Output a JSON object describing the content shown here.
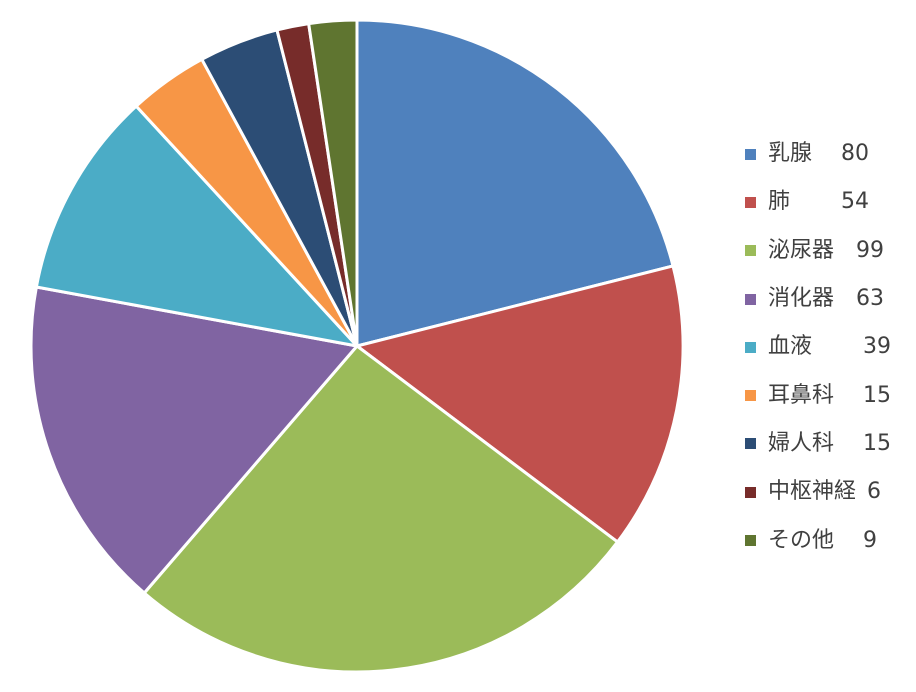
{
  "chart_data": {
    "type": "pie",
    "categories": [
      "乳腺",
      "肺",
      "泌尿器",
      "消化器",
      "血液",
      "耳鼻科",
      "婦人科",
      "中枢神経",
      "その他"
    ],
    "values": [
      80,
      54,
      99,
      63,
      39,
      15,
      15,
      6,
      9
    ],
    "legend_labels": [
      "乳腺　 80",
      "肺　　 54",
      "泌尿器　99",
      "消化器　63",
      "血液　　 39",
      "耳鼻科　 15",
      "婦人科　 15",
      "中枢神経 6",
      "その他　 9"
    ],
    "colors": [
      "#4f81bd",
      "#c0504d",
      "#9bbb59",
      "#8064a2",
      "#4bacc6",
      "#f79646",
      "#2c4d75",
      "#772c2a",
      "#5f7530"
    ],
    "start_angle": "12 o'clock",
    "direction": "clockwise",
    "legend_position": "right"
  }
}
